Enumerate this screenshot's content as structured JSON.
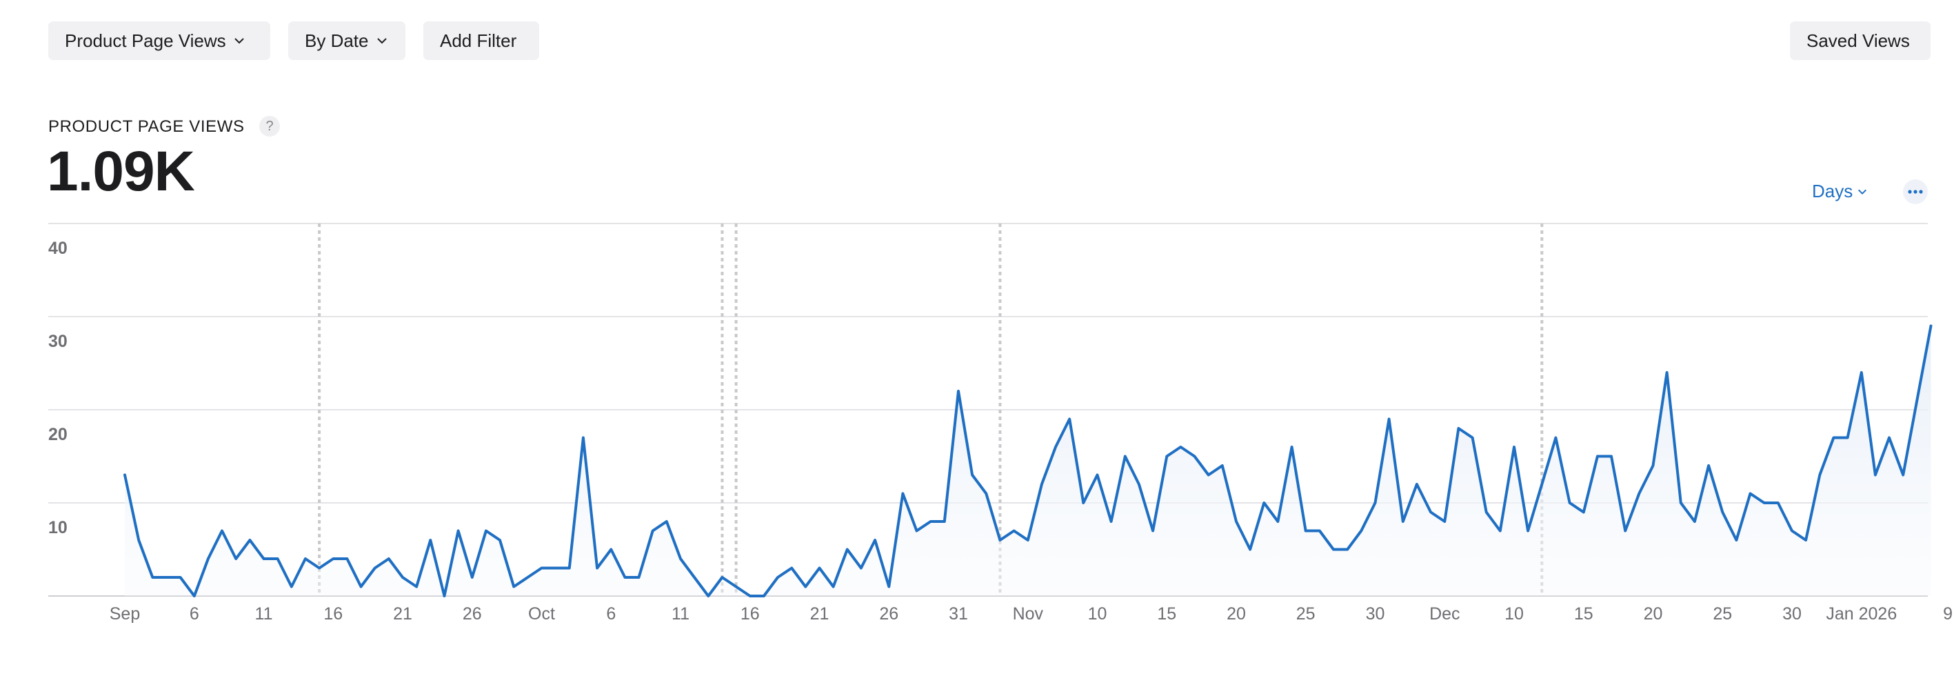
{
  "toolbar": {
    "metric_label": "Product Page Views",
    "group_label": "By Date",
    "filter_label": "Add Filter",
    "saved_label": "Saved Views"
  },
  "summary": {
    "title": "PRODUCT PAGE VIEWS",
    "help": "?",
    "value": "1.09K"
  },
  "granularity": {
    "label": "Days"
  },
  "colors": {
    "line": "#1f6fc3",
    "accent_text": "#1f6fc3",
    "grid": "#dcdcdf",
    "annotation": "#c9c9cc"
  },
  "icons": {
    "dropdown": "chevron-down-icon",
    "more": "more-options-icon",
    "help": "help-icon"
  },
  "chart_data": {
    "type": "area",
    "start_date": "2025-09-01",
    "y_ticks": [
      10,
      20,
      30,
      40
    ],
    "ylim": [
      0,
      40
    ],
    "grid": true,
    "x_labels": [
      {
        "date": "2025-09-01",
        "label": "Sep"
      },
      {
        "date": "2025-09-06",
        "label": "6"
      },
      {
        "date": "2025-09-11",
        "label": "11"
      },
      {
        "date": "2025-09-16",
        "label": "16"
      },
      {
        "date": "2025-09-21",
        "label": "21"
      },
      {
        "date": "2025-09-26",
        "label": "26"
      },
      {
        "date": "2025-10-01",
        "label": "Oct"
      },
      {
        "date": "2025-10-06",
        "label": "6"
      },
      {
        "date": "2025-10-11",
        "label": "11"
      },
      {
        "date": "2025-10-16",
        "label": "16"
      },
      {
        "date": "2025-10-21",
        "label": "21"
      },
      {
        "date": "2025-10-26",
        "label": "26"
      },
      {
        "date": "2025-10-31",
        "label": "31"
      },
      {
        "date": "2025-11-05",
        "label": "Nov"
      },
      {
        "date": "2025-11-10",
        "label": "10"
      },
      {
        "date": "2025-11-15",
        "label": "15"
      },
      {
        "date": "2025-11-20",
        "label": "20"
      },
      {
        "date": "2025-11-25",
        "label": "25"
      },
      {
        "date": "2025-11-30",
        "label": "30"
      },
      {
        "date": "2025-12-05",
        "label": "Dec"
      },
      {
        "date": "2025-12-10",
        "label": "10"
      },
      {
        "date": "2025-12-15",
        "label": "15"
      },
      {
        "date": "2025-12-20",
        "label": "20"
      },
      {
        "date": "2025-12-25",
        "label": "25"
      },
      {
        "date": "2025-12-30",
        "label": "30"
      },
      {
        "date": "2026-01-04",
        "label": "Jan 2026"
      },
      {
        "date": "2026-01-09",
        "label": "9"
      }
    ],
    "annotations": [
      "2025-09-15",
      "2025-10-14",
      "2025-10-15",
      "2025-11-03",
      "2025-12-12"
    ],
    "values": [
      13,
      6,
      2,
      2,
      2,
      0,
      4,
      7,
      4,
      6,
      4,
      4,
      1,
      4,
      3,
      4,
      4,
      1,
      3,
      4,
      2,
      1,
      6,
      0,
      7,
      2,
      7,
      6,
      1,
      2,
      3,
      3,
      3,
      17,
      3,
      5,
      2,
      2,
      7,
      8,
      4,
      2,
      0,
      2,
      1,
      0,
      0,
      2,
      3,
      1,
      3,
      1,
      5,
      3,
      6,
      1,
      11,
      7,
      8,
      8,
      22,
      13,
      11,
      6,
      7,
      6,
      12,
      16,
      19,
      10,
      13,
      8,
      15,
      12,
      7,
      15,
      16,
      15,
      13,
      14,
      8,
      5,
      10,
      8,
      16,
      7,
      7,
      5,
      5,
      7,
      10,
      19,
      8,
      12,
      9,
      8,
      18,
      17,
      9,
      7,
      16,
      7,
      12,
      17,
      10,
      9,
      15,
      15,
      7,
      11,
      14,
      24,
      10,
      8,
      14,
      9,
      6,
      11,
      10,
      10,
      7,
      6,
      13,
      17,
      17,
      24,
      13,
      17,
      13,
      21,
      29
    ]
  }
}
